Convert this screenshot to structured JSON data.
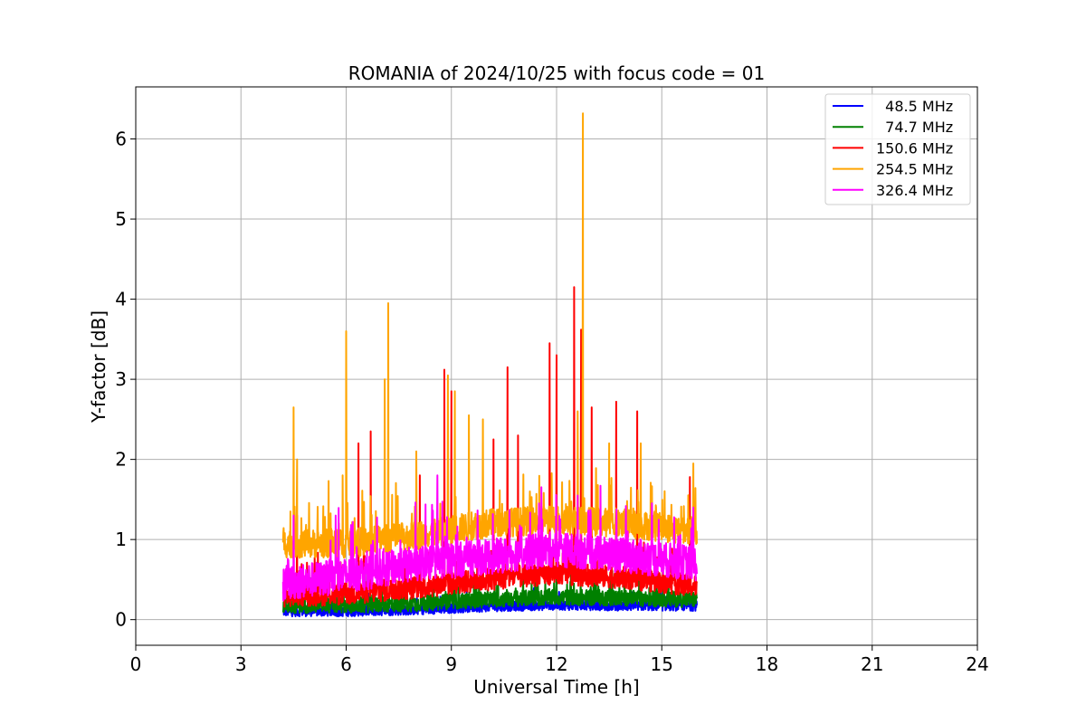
{
  "chart_data": {
    "type": "line",
    "title": "ROMANIA of 2024/10/25 with focus code = 01",
    "xlabel": "Universal Time [h]",
    "ylabel": "Y-factor [dB]",
    "xlim": [
      0,
      24
    ],
    "ylim": [
      -0.32,
      6.65
    ],
    "xticks": [
      0,
      3,
      6,
      9,
      12,
      15,
      18,
      21,
      24
    ],
    "yticks": [
      0,
      1,
      2,
      3,
      4,
      5,
      6
    ],
    "grid": true,
    "legend_position": "top-right",
    "time_range": [
      4.2,
      16.0
    ],
    "series": [
      {
        "name": "  48.5 MHz",
        "color": "#0000ff",
        "baseline": [
          [
            4.2,
            0.1
          ],
          [
            6,
            0.1
          ],
          [
            8,
            0.12
          ],
          [
            10,
            0.16
          ],
          [
            12,
            0.18
          ],
          [
            14,
            0.17
          ],
          [
            16,
            0.17
          ]
        ],
        "spikes": []
      },
      {
        "name": "  74.7 MHz",
        "color": "#008000",
        "baseline": [
          [
            4.2,
            0.18
          ],
          [
            6,
            0.18
          ],
          [
            8,
            0.2
          ],
          [
            10,
            0.25
          ],
          [
            12,
            0.28
          ],
          [
            14,
            0.27
          ],
          [
            16,
            0.25
          ]
        ],
        "spikes": [
          [
            10.3,
            0.42
          ],
          [
            12.3,
            0.44
          ],
          [
            13.1,
            0.45
          ]
        ]
      },
      {
        "name": "150.6 MHz",
        "color": "#ff0000",
        "baseline": [
          [
            4.2,
            0.3
          ],
          [
            6,
            0.32
          ],
          [
            8,
            0.4
          ],
          [
            10,
            0.5
          ],
          [
            12,
            0.58
          ],
          [
            14,
            0.52
          ],
          [
            16,
            0.42
          ]
        ],
        "spikes": [
          [
            4.6,
            1.3
          ],
          [
            6.35,
            2.2
          ],
          [
            6.7,
            2.35
          ],
          [
            8.1,
            1.8
          ],
          [
            8.8,
            3.12
          ],
          [
            9.0,
            2.85
          ],
          [
            10.2,
            2.25
          ],
          [
            10.6,
            3.15
          ],
          [
            10.9,
            2.3
          ],
          [
            11.8,
            3.45
          ],
          [
            12.0,
            3.3
          ],
          [
            12.5,
            4.15
          ],
          [
            12.7,
            3.62
          ],
          [
            13.0,
            2.65
          ],
          [
            13.7,
            2.72
          ],
          [
            14.3,
            2.6
          ],
          [
            15.8,
            1.78
          ]
        ]
      },
      {
        "name": "254.5 MHz",
        "color": "#ffa500",
        "baseline": [
          [
            4.2,
            0.95
          ],
          [
            6,
            0.95
          ],
          [
            8,
            1.05
          ],
          [
            10,
            1.2
          ],
          [
            12,
            1.25
          ],
          [
            14,
            1.2
          ],
          [
            16,
            1.1
          ]
        ],
        "spikes": [
          [
            4.5,
            2.65
          ],
          [
            4.6,
            2.0
          ],
          [
            5.5,
            1.73
          ],
          [
            5.9,
            1.8
          ],
          [
            6.0,
            3.6
          ],
          [
            7.2,
            3.95
          ],
          [
            7.1,
            3.0
          ],
          [
            8.0,
            2.1
          ],
          [
            8.9,
            3.05
          ],
          [
            9.1,
            2.85
          ],
          [
            9.5,
            2.55
          ],
          [
            9.9,
            2.5
          ],
          [
            12.6,
            2.6
          ],
          [
            12.75,
            6.32
          ],
          [
            13.5,
            2.2
          ],
          [
            14.4,
            2.2
          ],
          [
            15.9,
            1.95
          ]
        ]
      },
      {
        "name": "326.4 MHz",
        "color": "#ff00ff",
        "baseline": [
          [
            4.2,
            0.45
          ],
          [
            6,
            0.55
          ],
          [
            8,
            0.7
          ],
          [
            10,
            0.78
          ],
          [
            12,
            0.88
          ],
          [
            14,
            0.8
          ],
          [
            16,
            0.7
          ]
        ],
        "spikes": [
          [
            4.5,
            1.3
          ],
          [
            5.7,
            1.3
          ],
          [
            8.6,
            1.8
          ],
          [
            11.5,
            1.45
          ],
          [
            12.6,
            1.55
          ],
          [
            15.9,
            1.4
          ]
        ]
      }
    ]
  }
}
